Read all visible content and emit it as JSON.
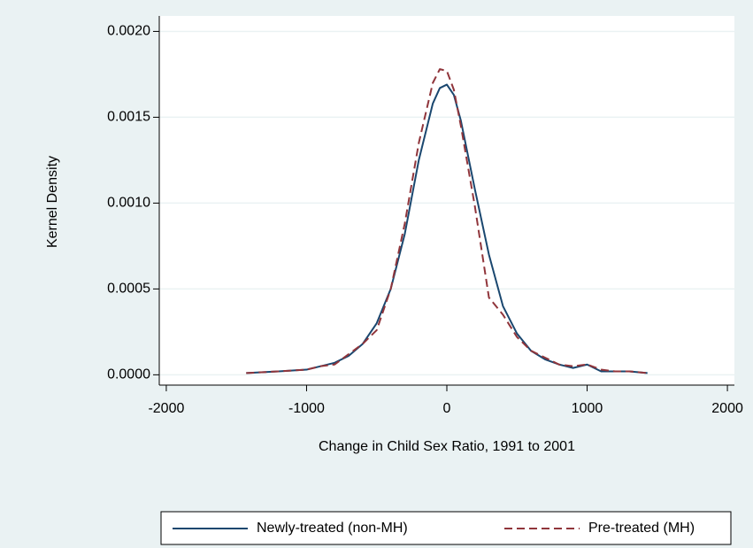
{
  "chart_data": {
    "type": "line",
    "x_label": "Change in Child Sex Ratio, 1991 to 2001",
    "y_label": "Kernel Density",
    "x": [
      -1430,
      -1200,
      -1000,
      -900,
      -800,
      -700,
      -600,
      -500,
      -400,
      -300,
      -200,
      -100,
      -50,
      0,
      50,
      100,
      200,
      300,
      400,
      500,
      600,
      700,
      800,
      900,
      1000,
      1100,
      1200,
      1300,
      1430
    ],
    "series": [
      {
        "name": "Newly-treated (non-MH)",
        "color": "#1a476f",
        "dash": "solid",
        "values": [
          1e-05,
          2e-05,
          3e-05,
          5e-05,
          7e-05,
          0.00011,
          0.00018,
          0.0003,
          0.0005,
          0.00082,
          0.00125,
          0.00158,
          0.00167,
          0.00169,
          0.00163,
          0.00148,
          0.00108,
          0.0007,
          0.0004,
          0.00024,
          0.00014,
          9e-05,
          6e-05,
          4e-05,
          6e-05,
          2e-05,
          2e-05,
          2e-05,
          1e-05
        ]
      },
      {
        "name": "Pre-treated (MH)",
        "color": "#90353b",
        "dash": "dashed",
        "values": [
          1e-05,
          2e-05,
          3e-05,
          5e-05,
          6e-05,
          0.00012,
          0.00018,
          0.00026,
          0.0005,
          0.00088,
          0.00135,
          0.0017,
          0.00178,
          0.00177,
          0.00166,
          0.00145,
          0.00098,
          0.00045,
          0.00035,
          0.00022,
          0.00014,
          0.0001,
          6e-05,
          5e-05,
          6e-05,
          3e-05,
          2e-05,
          2e-05,
          1e-05
        ]
      }
    ],
    "xlim": [
      -2050,
      2050
    ],
    "xticks": [
      -2000,
      -1000,
      0,
      1000,
      2000
    ],
    "ylim": [
      -6e-05,
      0.00209
    ],
    "yticks": [
      {
        "value": 0,
        "label": "0.0000"
      },
      {
        "value": 0.0005,
        "label": "0.0005"
      },
      {
        "value": 0.001,
        "label": "0.0010"
      },
      {
        "value": 0.0015,
        "label": "0.0015"
      },
      {
        "value": 0.002,
        "label": "0.0020"
      }
    ],
    "grid": true,
    "legend": "bottom"
  }
}
